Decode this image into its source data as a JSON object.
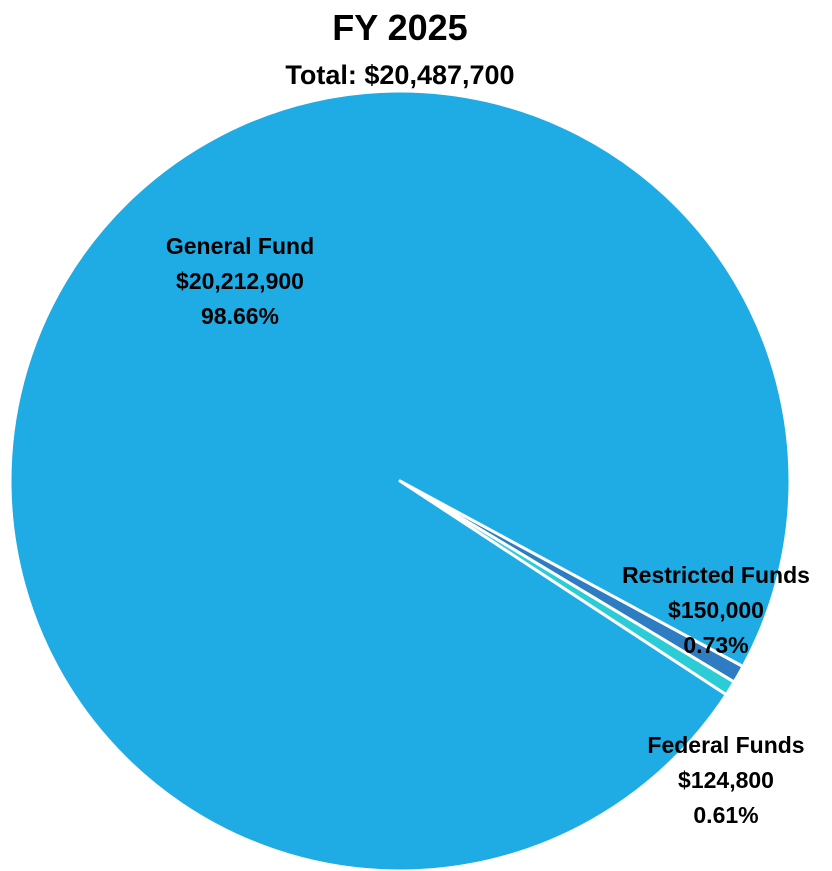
{
  "chart_data": {
    "type": "pie",
    "title": "FY 2025",
    "subtitle": "Total: $20,487,700",
    "slices": [
      {
        "name": "General Fund",
        "value": 20212900,
        "value_label": "$20,212,900",
        "percent": 98.66,
        "percent_label": "98.66%",
        "color": "#1fabe3"
      },
      {
        "name": "Restricted Funds",
        "value": 150000,
        "value_label": "$150,000",
        "percent": 0.73,
        "percent_label": "0.73%",
        "color": "#2e7dc2"
      },
      {
        "name": "Federal Funds",
        "value": 124800,
        "value_label": "$124,800",
        "percent": 0.61,
        "percent_label": "0.61%",
        "color": "#2cccd6"
      }
    ]
  }
}
